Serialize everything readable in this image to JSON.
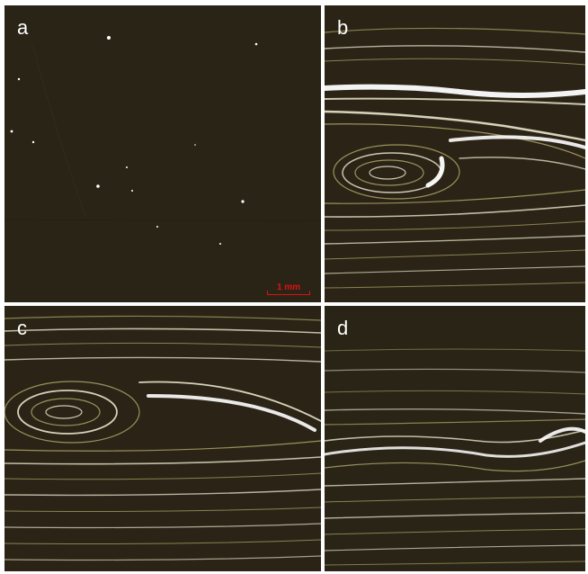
{
  "panels": [
    {
      "letter": "a"
    },
    {
      "letter": "b"
    },
    {
      "letter": "c"
    },
    {
      "letter": "d"
    }
  ],
  "scale_bar": {
    "label": "1 mm",
    "color": "#e01010"
  },
  "colors": {
    "background": "#2b2416",
    "streak": "#f4f1d8",
    "streak_yellow": "#c9c07a",
    "letter": "#ffffff"
  }
}
